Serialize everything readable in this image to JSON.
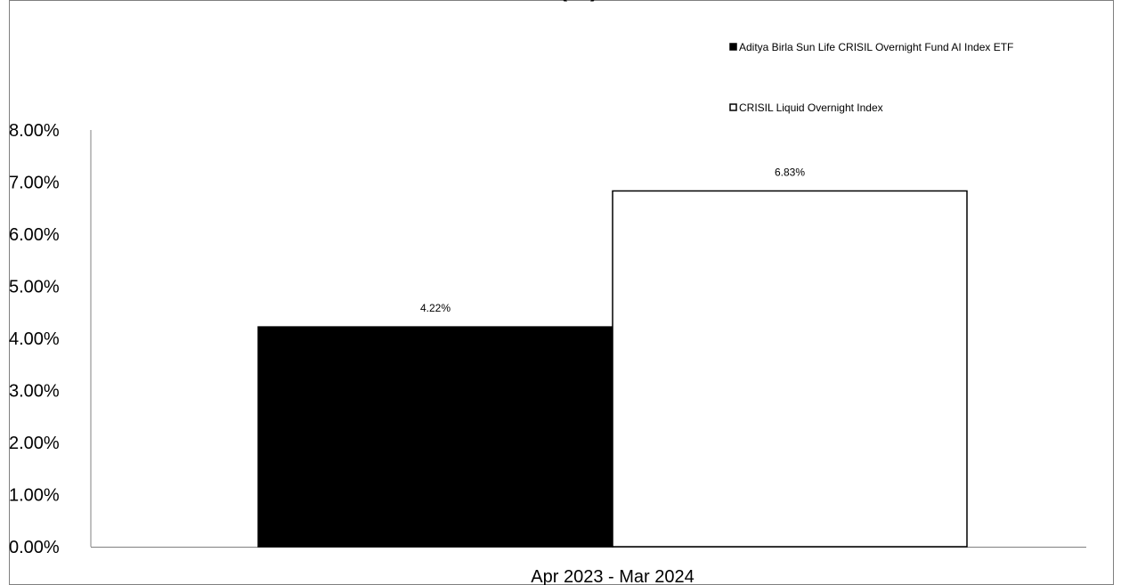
{
  "chart_data": {
    "type": "bar",
    "title": "(…)",
    "categories": [
      "Apr 2023 - Mar 2024"
    ],
    "series": [
      {
        "name": "Aditya Birla Sun Life CRISIL Overnight Fund AI Index ETF",
        "values": [
          4.22
        ],
        "data_labels": [
          "4.22%"
        ],
        "color": "#000000"
      },
      {
        "name": "CRISIL Liquid Overnight Index",
        "values": [
          6.83
        ],
        "data_labels": [
          "6.83%"
        ],
        "color": "#ffffff"
      }
    ],
    "ylim": [
      0,
      8
    ],
    "yticks": [
      0,
      1,
      2,
      3,
      4,
      5,
      6,
      7,
      8
    ],
    "ytick_labels": [
      "0.00%",
      "1.00%",
      "2.00%",
      "3.00%",
      "4.00%",
      "5.00%",
      "6.00%",
      "7.00%",
      "8.00%"
    ],
    "legend_position": "top-right",
    "grid": false
  }
}
